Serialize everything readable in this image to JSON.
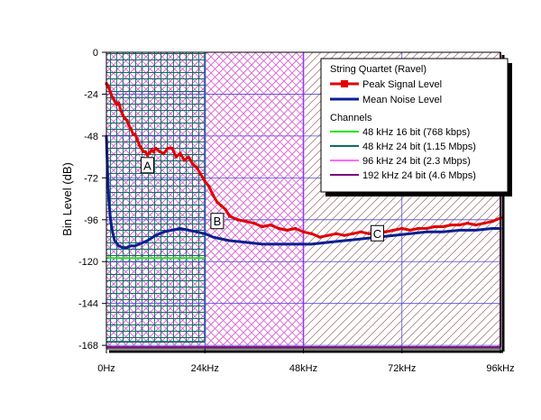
{
  "chart_data": {
    "type": "line",
    "title": "",
    "xlabel": "",
    "ylabel": "Bin Level (dB)",
    "xlim": [
      0,
      96
    ],
    "ylim": [
      -170,
      0
    ],
    "x_ticks": [
      {
        "value": 0,
        "label": "0Hz"
      },
      {
        "value": 24,
        "label": "24kHz"
      },
      {
        "value": 48,
        "label": "48kHz"
      },
      {
        "value": 72,
        "label": "72kHz"
      },
      {
        "value": 96,
        "label": "96kHz"
      }
    ],
    "y_ticks": [
      {
        "value": 0,
        "label": "0"
      },
      {
        "value": -24,
        "label": "-24"
      },
      {
        "value": -48,
        "label": "-48"
      },
      {
        "value": -72,
        "label": "-72"
      },
      {
        "value": -96,
        "label": "-96"
      },
      {
        "value": -120,
        "label": "-120"
      },
      {
        "value": -144,
        "label": "-144"
      },
      {
        "value": -168,
        "label": "-168"
      }
    ],
    "grid": true,
    "legend_position": "top-right",
    "legend_title": "String Quartet (Ravel)",
    "channels_heading": "Channels",
    "series": [
      {
        "name": "Peak Signal Level",
        "color": "#e00000",
        "marker": "square",
        "x": [
          0,
          0.5,
          1,
          1.5,
          2,
          2.5,
          3,
          3.5,
          4,
          4.5,
          5,
          5.5,
          6,
          6.5,
          7,
          7.5,
          8,
          8.5,
          9,
          9.5,
          10,
          10.5,
          11,
          11.5,
          12,
          13,
          14,
          15,
          16,
          17,
          18,
          19,
          20,
          21,
          22,
          23,
          24,
          25,
          26,
          27,
          28,
          29,
          30,
          32,
          34,
          36,
          38,
          40,
          42,
          44,
          46,
          48,
          50,
          52,
          54,
          56,
          58,
          60,
          62,
          64,
          66,
          68,
          70,
          72,
          74,
          76,
          78,
          80,
          82,
          84,
          86,
          88,
          90,
          92,
          94,
          96
        ],
        "values": [
          -18,
          -20,
          -23,
          -26,
          -28,
          -30,
          -29,
          -33,
          -36,
          -38,
          -39,
          -42,
          -44,
          -47,
          -47,
          -50,
          -53,
          -55,
          -57,
          -57,
          -59,
          -58,
          -56,
          -57,
          -55,
          -57,
          -58,
          -55,
          -55,
          -60,
          -58,
          -62,
          -60,
          -64,
          -66,
          -70,
          -74,
          -77,
          -82,
          -86,
          -88,
          -90,
          -94,
          -96,
          -97,
          -98,
          -100,
          -99,
          -101,
          -102,
          -101,
          -103,
          -104,
          -106,
          -105,
          -104,
          -105,
          -104,
          -103,
          -104,
          -103,
          -103,
          -102,
          -101,
          -102,
          -101,
          -101,
          -100,
          -100,
          -99,
          -99,
          -98,
          -99,
          -98,
          -97,
          -95
        ]
      },
      {
        "name": "Mean Noise Level",
        "color": "#0a1f8f",
        "marker": "none",
        "x": [
          0,
          0.3,
          0.6,
          1,
          1.5,
          2,
          3,
          4,
          5,
          6,
          7,
          8,
          10,
          12,
          14,
          16,
          18,
          20,
          22,
          24,
          26,
          28,
          30,
          34,
          38,
          42,
          46,
          50,
          54,
          58,
          62,
          66,
          70,
          74,
          78,
          82,
          86,
          90,
          94,
          96
        ],
        "values": [
          -48,
          -70,
          -85,
          -96,
          -103,
          -108,
          -111,
          -112,
          -112,
          -111,
          -111,
          -110,
          -108,
          -105,
          -103,
          -102,
          -101,
          -102,
          -103,
          -104,
          -106,
          -107,
          -108,
          -109,
          -110,
          -110,
          -110,
          -110,
          -109,
          -108,
          -107,
          -106,
          -105,
          -104,
          -103,
          -103,
          -102,
          -102,
          -101,
          -101
        ]
      }
    ],
    "channels": [
      {
        "name": "48 kHz 16 bit (768 kbps)",
        "color": "#19e619",
        "bandwidth_khz": 24,
        "noise_floor_db": -118,
        "hatch": "none"
      },
      {
        "name": "48 kHz 24 bit (1.15 Mbps)",
        "color": "#0c6e62",
        "bandwidth_khz": 24,
        "noise_floor_db": -166,
        "hatch": "grid"
      },
      {
        "name": "96 kHz 24 bit (2.3 Mbps)",
        "color": "#ff66ff",
        "bandwidth_khz": 48,
        "noise_floor_db": -169,
        "hatch": "crosshatch"
      },
      {
        "name": "192 kHz 24 bit (4.6 Mbps)",
        "color": "#7a0a7a",
        "bandwidth_khz": 96,
        "noise_floor_db": -169,
        "hatch": "diagonal"
      }
    ],
    "annotations": [
      {
        "text": "A",
        "x": 10,
        "y": -65
      },
      {
        "text": "B",
        "x": 27,
        "y": -97
      },
      {
        "text": "C",
        "x": 66,
        "y": -104
      }
    ]
  }
}
